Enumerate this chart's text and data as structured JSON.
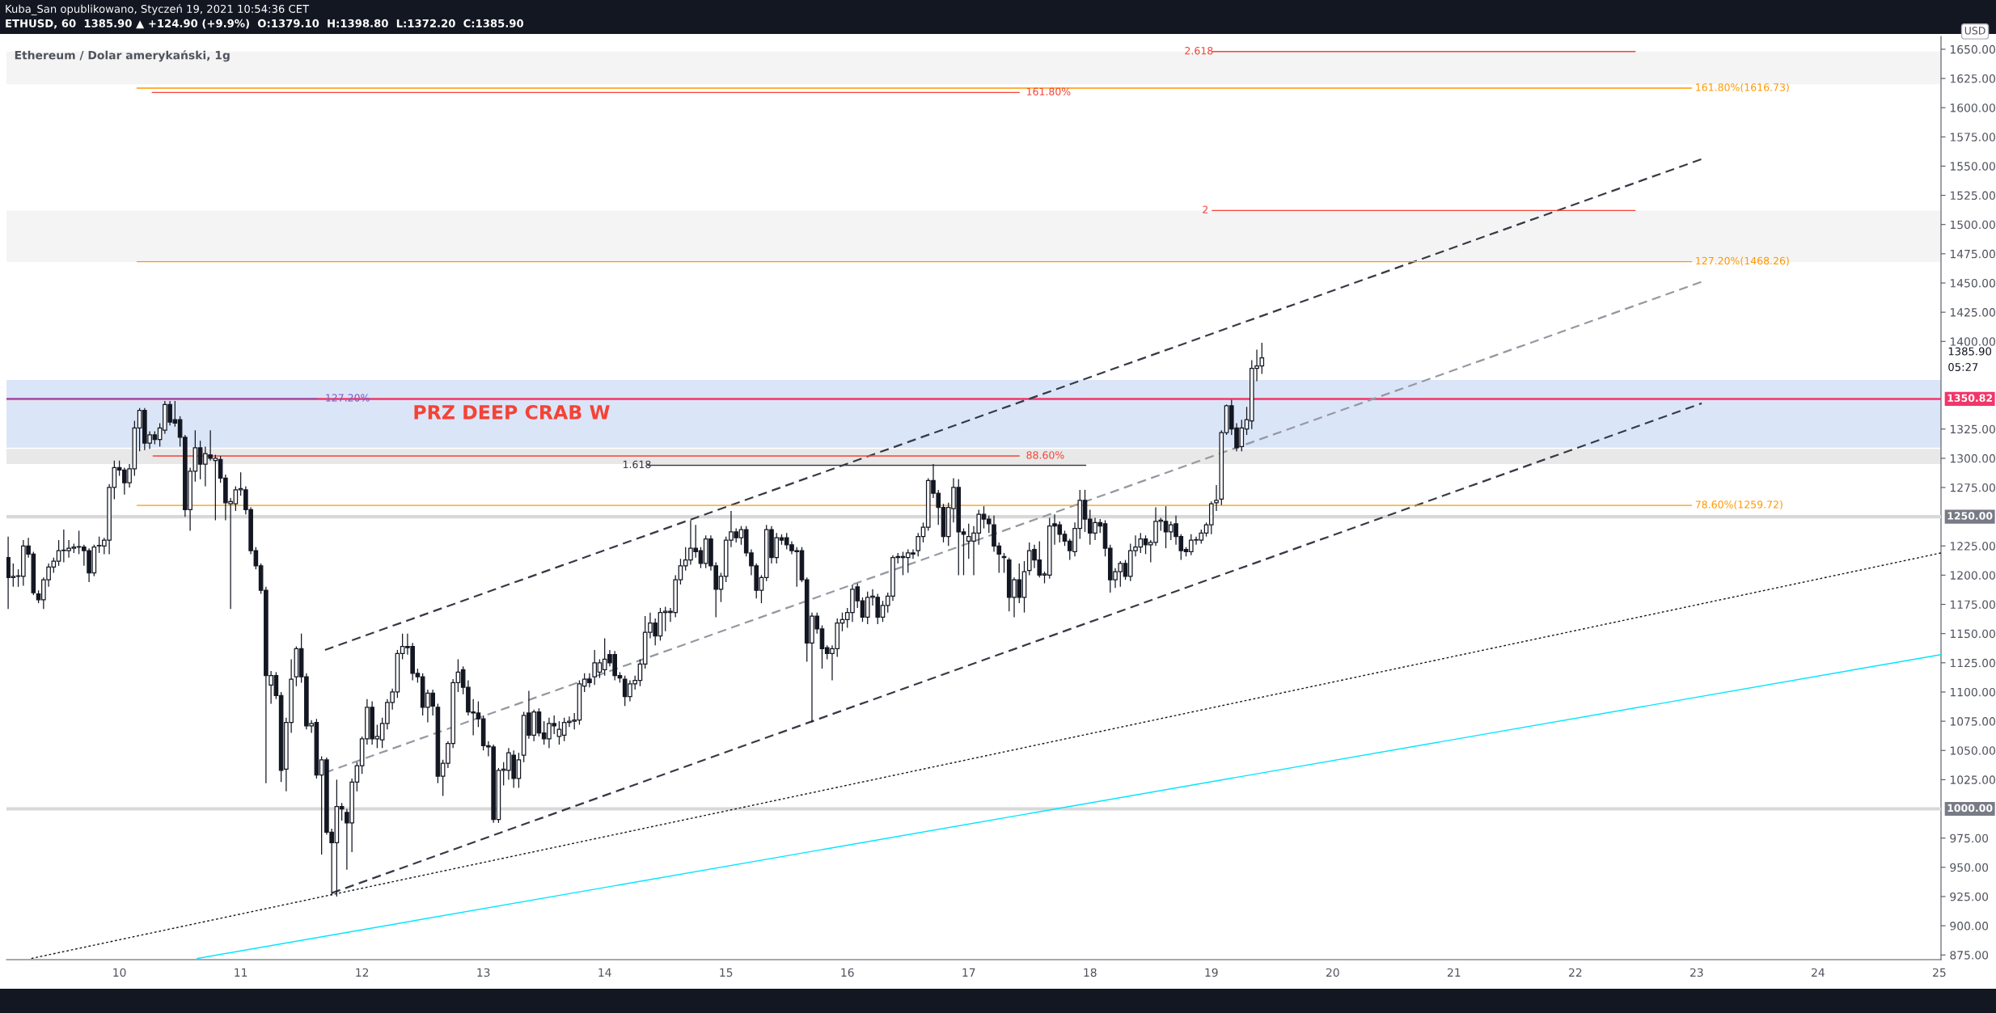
{
  "chart_data": {
    "type": "candlestick",
    "title": "Kuba_San opublikowano, Styczeń 19, 2021 10:54:36 CET",
    "subtitle": "ETHUSD, 60  1385.90 ▲ +124.90 (+9.9%)  O:1379.10  H:1398.80  L:1372.20  C:1385.90",
    "ylabel": "USD",
    "color": "#131722",
    "x": [
      "2021-01-09T02:00",
      "2021-01-09T03:00",
      "2021-01-09T04:00",
      "2021-01-09T05:00",
      "2021-01-09T06:00",
      "2021-01-09T07:00",
      "2021-01-09T08:00",
      "2021-01-09T09:00",
      "2021-01-09T10:00",
      "2021-01-09T11:00",
      "2021-01-09T12:00",
      "2021-01-09T13:00",
      "2021-01-09T14:00",
      "2021-01-09T15:00",
      "2021-01-09T16:00",
      "2021-01-09T17:00",
      "2021-01-09T18:00",
      "2021-01-09T19:00",
      "2021-01-09T20:00",
      "2021-01-09T21:00",
      "2021-01-09T22:00",
      "2021-01-09T23:00",
      "2021-01-10T00:00",
      "2021-01-10T01:00",
      "2021-01-10T02:00",
      "2021-01-10T03:00",
      "2021-01-10T04:00",
      "2021-01-10T05:00",
      "2021-01-10T06:00",
      "2021-01-10T07:00",
      "2021-01-10T08:00",
      "2021-01-10T09:00",
      "2021-01-10T10:00",
      "2021-01-10T11:00",
      "2021-01-10T12:00",
      "2021-01-10T13:00",
      "2021-01-10T14:00",
      "2021-01-10T15:00",
      "2021-01-10T16:00",
      "2021-01-10T17:00",
      "2021-01-10T18:00",
      "2021-01-10T19:00",
      "2021-01-10T20:00",
      "2021-01-10T21:00",
      "2021-01-10T22:00",
      "2021-01-10T23:00",
      "2021-01-11T00:00",
      "2021-01-11T01:00",
      "2021-01-11T02:00",
      "2021-01-11T03:00",
      "2021-01-11T04:00",
      "2021-01-11T05:00",
      "2021-01-11T06:00",
      "2021-01-11T07:00",
      "2021-01-11T08:00",
      "2021-01-11T09:00",
      "2021-01-11T10:00",
      "2021-01-11T11:00",
      "2021-01-11T12:00",
      "2021-01-11T13:00",
      "2021-01-11T14:00",
      "2021-01-11T15:00",
      "2021-01-11T16:00",
      "2021-01-11T17:00",
      "2021-01-11T18:00",
      "2021-01-11T19:00",
      "2021-01-11T20:00",
      "2021-01-11T21:00",
      "2021-01-11T22:00",
      "2021-01-11T23:00",
      "2021-01-12T00:00",
      "2021-01-12T01:00",
      "2021-01-12T02:00",
      "2021-01-12T03:00",
      "2021-01-12T04:00",
      "2021-01-12T05:00",
      "2021-01-12T06:00",
      "2021-01-12T07:00",
      "2021-01-12T08:00",
      "2021-01-12T09:00",
      "2021-01-12T10:00",
      "2021-01-12T11:00",
      "2021-01-12T12:00",
      "2021-01-12T13:00",
      "2021-01-12T14:00",
      "2021-01-12T15:00",
      "2021-01-12T16:00",
      "2021-01-12T17:00",
      "2021-01-12T18:00",
      "2021-01-12T19:00",
      "2021-01-12T20:00",
      "2021-01-12T21:00",
      "2021-01-12T22:00",
      "2021-01-12T23:00",
      "2021-01-13T00:00",
      "2021-01-13T01:00",
      "2021-01-13T02:00",
      "2021-01-13T03:00",
      "2021-01-13T04:00",
      "2021-01-13T05:00",
      "2021-01-13T06:00",
      "2021-01-13T07:00",
      "2021-01-13T08:00",
      "2021-01-13T09:00",
      "2021-01-13T10:00",
      "2021-01-13T11:00",
      "2021-01-13T12:00",
      "2021-01-13T13:00",
      "2021-01-13T14:00",
      "2021-01-13T15:00",
      "2021-01-13T16:00",
      "2021-01-13T17:00",
      "2021-01-13T18:00",
      "2021-01-13T19:00",
      "2021-01-13T20:00",
      "2021-01-13T21:00",
      "2021-01-13T22:00",
      "2021-01-13T23:00",
      "2021-01-14T00:00",
      "2021-01-14T01:00",
      "2021-01-14T02:00",
      "2021-01-14T03:00",
      "2021-01-14T04:00",
      "2021-01-14T05:00",
      "2021-01-14T06:00",
      "2021-01-14T07:00",
      "2021-01-14T08:00",
      "2021-01-14T09:00",
      "2021-01-14T10:00",
      "2021-01-14T11:00",
      "2021-01-14T12:00",
      "2021-01-14T13:00",
      "2021-01-14T14:00",
      "2021-01-14T15:00",
      "2021-01-14T16:00",
      "2021-01-14T17:00",
      "2021-01-14T18:00",
      "2021-01-14T19:00",
      "2021-01-14T20:00",
      "2021-01-14T21:00",
      "2021-01-14T22:00",
      "2021-01-14T23:00",
      "2021-01-15T00:00",
      "2021-01-15T01:00",
      "2021-01-15T02:00",
      "2021-01-15T03:00",
      "2021-01-15T04:00",
      "2021-01-15T05:00",
      "2021-01-15T06:00",
      "2021-01-15T07:00",
      "2021-01-15T08:00",
      "2021-01-15T09:00",
      "2021-01-15T10:00",
      "2021-01-15T11:00",
      "2021-01-15T12:00",
      "2021-01-15T13:00",
      "2021-01-15T14:00",
      "2021-01-15T15:00",
      "2021-01-15T16:00",
      "2021-01-15T17:00",
      "2021-01-15T18:00",
      "2021-01-15T19:00",
      "2021-01-15T20:00",
      "2021-01-15T21:00",
      "2021-01-15T22:00",
      "2021-01-15T23:00",
      "2021-01-16T00:00",
      "2021-01-16T01:00",
      "2021-01-16T02:00",
      "2021-01-16T03:00",
      "2021-01-16T04:00",
      "2021-01-16T05:00",
      "2021-01-16T06:00",
      "2021-01-16T07:00",
      "2021-01-16T08:00",
      "2021-01-16T09:00",
      "2021-01-16T10:00",
      "2021-01-16T11:00",
      "2021-01-16T12:00",
      "2021-01-16T13:00",
      "2021-01-16T14:00",
      "2021-01-16T15:00",
      "2021-01-16T16:00",
      "2021-01-16T17:00",
      "2021-01-16T18:00",
      "2021-01-16T19:00",
      "2021-01-16T20:00",
      "2021-01-16T21:00",
      "2021-01-16T22:00",
      "2021-01-16T23:00",
      "2021-01-17T00:00",
      "2021-01-17T01:00",
      "2021-01-17T02:00",
      "2021-01-17T03:00",
      "2021-01-17T04:00",
      "2021-01-17T05:00",
      "2021-01-17T06:00",
      "2021-01-17T07:00",
      "2021-01-17T08:00",
      "2021-01-17T09:00",
      "2021-01-17T10:00",
      "2021-01-17T11:00",
      "2021-01-17T12:00",
      "2021-01-17T13:00",
      "2021-01-17T14:00",
      "2021-01-17T15:00",
      "2021-01-17T16:00",
      "2021-01-17T17:00",
      "2021-01-17T18:00",
      "2021-01-17T19:00",
      "2021-01-17T20:00",
      "2021-01-17T21:00",
      "2021-01-17T22:00",
      "2021-01-17T23:00",
      "2021-01-18T00:00",
      "2021-01-18T01:00",
      "2021-01-18T02:00",
      "2021-01-18T03:00",
      "2021-01-18T04:00",
      "2021-01-18T05:00",
      "2021-01-18T06:00",
      "2021-01-18T07:00",
      "2021-01-18T08:00",
      "2021-01-18T09:00",
      "2021-01-18T10:00",
      "2021-01-18T11:00",
      "2021-01-18T12:00",
      "2021-01-18T13:00",
      "2021-01-18T14:00",
      "2021-01-18T15:00",
      "2021-01-18T16:00",
      "2021-01-18T17:00",
      "2021-01-18T18:00",
      "2021-01-18T19:00",
      "2021-01-18T20:00",
      "2021-01-18T21:00",
      "2021-01-18T22:00",
      "2021-01-18T23:00",
      "2021-01-19T00:00",
      "2021-01-19T01:00",
      "2021-01-19T02:00",
      "2021-01-19T03:00",
      "2021-01-19T04:00",
      "2021-01-19T05:00",
      "2021-01-19T06:00",
      "2021-01-19T07:00",
      "2021-01-19T08:00",
      "2021-01-19T09:00",
      "2021-01-19T10:00"
    ],
    "ohlc": [
      [
        1215,
        1233,
        1171,
        1198
      ],
      [
        1198,
        1210,
        1190,
        1199
      ],
      [
        1199,
        1205,
        1190,
        1199
      ],
      [
        1199,
        1230,
        1191,
        1225
      ],
      [
        1225,
        1232,
        1215,
        1218
      ],
      [
        1218,
        1220,
        1183,
        1185
      ],
      [
        1184,
        1187,
        1176,
        1179
      ],
      [
        1179,
        1198,
        1171,
        1196
      ],
      [
        1196,
        1210,
        1190,
        1207
      ],
      [
        1207,
        1215,
        1202,
        1212
      ],
      [
        1212,
        1230,
        1208,
        1221
      ],
      [
        1221,
        1239,
        1211,
        1221
      ],
      [
        1221,
        1230,
        1215,
        1223
      ],
      [
        1223,
        1227,
        1219,
        1224
      ],
      [
        1224,
        1238,
        1218,
        1224
      ],
      [
        1224,
        1226,
        1208,
        1221
      ],
      [
        1221,
        1223,
        1194,
        1202
      ],
      [
        1202,
        1226,
        1199,
        1224
      ],
      [
        1225,
        1233,
        1219,
        1225
      ],
      [
        1225,
        1232,
        1218,
        1230
      ],
      [
        1230,
        1278,
        1218,
        1275
      ],
      [
        1275,
        1298,
        1265,
        1292
      ],
      [
        1292,
        1298,
        1285,
        1290
      ],
      [
        1290,
        1292,
        1269,
        1279
      ],
      [
        1279,
        1295,
        1275,
        1291
      ],
      [
        1291,
        1332,
        1285,
        1326
      ],
      [
        1326,
        1343,
        1306,
        1341
      ],
      [
        1341,
        1343,
        1307,
        1313
      ],
      [
        1313,
        1323,
        1308,
        1320
      ],
      [
        1320,
        1323,
        1312,
        1316
      ],
      [
        1316,
        1330,
        1310,
        1326
      ],
      [
        1324,
        1349,
        1321,
        1346
      ],
      [
        1346,
        1349,
        1328,
        1331
      ],
      [
        1333,
        1349,
        1327,
        1330
      ],
      [
        1333,
        1336,
        1310,
        1318
      ],
      [
        1318,
        1320,
        1250,
        1256
      ],
      [
        1256,
        1292,
        1238,
        1289
      ],
      [
        1289,
        1324,
        1280,
        1309
      ],
      [
        1309,
        1315,
        1282,
        1295
      ],
      [
        1295,
        1310,
        1276,
        1304
      ],
      [
        1303,
        1324,
        1298,
        1300
      ],
      [
        1298,
        1303,
        1247,
        1300
      ],
      [
        1299,
        1302,
        1279,
        1283
      ],
      [
        1283,
        1286,
        1247,
        1262
      ],
      [
        1261,
        1266,
        1171,
        1263
      ],
      [
        1261,
        1276,
        1255,
        1273
      ],
      [
        1273,
        1288,
        1268,
        1274
      ],
      [
        1273,
        1276,
        1252,
        1256
      ],
      [
        1256,
        1258,
        1218,
        1221
      ],
      [
        1221,
        1224,
        1205,
        1208
      ],
      [
        1208,
        1210,
        1184,
        1187
      ],
      [
        1187,
        1190,
        1022,
        1114
      ],
      [
        1106,
        1118,
        1090,
        1114
      ],
      [
        1114,
        1117,
        1094,
        1097
      ],
      [
        1097,
        1100,
        1023,
        1033
      ],
      [
        1034,
        1078,
        1015,
        1074
      ],
      [
        1074,
        1128,
        1065,
        1111
      ],
      [
        1113,
        1139,
        1105,
        1137
      ],
      [
        1137,
        1150,
        1108,
        1113
      ],
      [
        1113,
        1116,
        1068,
        1071
      ],
      [
        1071,
        1076,
        1065,
        1073
      ],
      [
        1074,
        1077,
        1026,
        1029
      ],
      [
        1029,
        1045,
        961,
        1042
      ],
      [
        1042,
        1044,
        978,
        980
      ],
      [
        980,
        983,
        926,
        971
      ],
      [
        971,
        1025,
        925,
        1002
      ],
      [
        1002,
        1005,
        990,
        1000
      ],
      [
        997,
        1000,
        948,
        988
      ],
      [
        988,
        1026,
        963,
        1023
      ],
      [
        1023,
        1040,
        1015,
        1037
      ],
      [
        1037,
        1062,
        1030,
        1060
      ],
      [
        1060,
        1094,
        1055,
        1087
      ],
      [
        1087,
        1092,
        1055,
        1060
      ],
      [
        1060,
        1072,
        1052,
        1062
      ],
      [
        1059,
        1078,
        1052,
        1073
      ],
      [
        1073,
        1094,
        1068,
        1091
      ],
      [
        1091,
        1103,
        1085,
        1100
      ],
      [
        1100,
        1136,
        1095,
        1133
      ],
      [
        1133,
        1150,
        1128,
        1139
      ],
      [
        1139,
        1150,
        1132,
        1138
      ],
      [
        1139,
        1142,
        1110,
        1116
      ],
      [
        1116,
        1120,
        1108,
        1113
      ],
      [
        1113,
        1116,
        1080,
        1087
      ],
      [
        1087,
        1102,
        1074,
        1099
      ],
      [
        1099,
        1102,
        1080,
        1088
      ],
      [
        1087,
        1090,
        1022,
        1028
      ],
      [
        1028,
        1042,
        1011,
        1039
      ],
      [
        1039,
        1058,
        1035,
        1056
      ],
      [
        1056,
        1111,
        1052,
        1108
      ],
      [
        1108,
        1128,
        1100,
        1117
      ],
      [
        1119,
        1122,
        1098,
        1104
      ],
      [
        1104,
        1110,
        1080,
        1083
      ],
      [
        1083,
        1094,
        1063,
        1082
      ],
      [
        1082,
        1092,
        1070,
        1077
      ],
      [
        1077,
        1080,
        1050,
        1054
      ],
      [
        1054,
        1058,
        1045,
        1053
      ],
      [
        1053,
        1055,
        988,
        991
      ],
      [
        991,
        1035,
        988,
        1033
      ],
      [
        1033,
        1040,
        1020,
        1034
      ],
      [
        1033,
        1052,
        1025,
        1048
      ],
      [
        1046,
        1050,
        1018,
        1026
      ],
      [
        1026,
        1048,
        1018,
        1042
      ],
      [
        1046,
        1083,
        1040,
        1080
      ],
      [
        1082,
        1101,
        1060,
        1063
      ],
      [
        1063,
        1085,
        1058,
        1083
      ],
      [
        1083,
        1086,
        1062,
        1065
      ],
      [
        1065,
        1075,
        1055,
        1060
      ],
      [
        1060,
        1078,
        1052,
        1073
      ],
      [
        1073,
        1080,
        1064,
        1071
      ],
      [
        1062,
        1075,
        1055,
        1068
      ],
      [
        1063,
        1078,
        1058,
        1074
      ],
      [
        1074,
        1079,
        1070,
        1075
      ],
      [
        1075,
        1082,
        1068,
        1076
      ],
      [
        1076,
        1110,
        1072,
        1107
      ],
      [
        1105,
        1116,
        1100,
        1111
      ],
      [
        1111,
        1116,
        1104,
        1108
      ],
      [
        1113,
        1136,
        1106,
        1125
      ],
      [
        1117,
        1128,
        1112,
        1125
      ],
      [
        1119,
        1146,
        1114,
        1128
      ],
      [
        1132,
        1136,
        1122,
        1125
      ],
      [
        1132,
        1135,
        1110,
        1114
      ],
      [
        1114,
        1117,
        1108,
        1112
      ],
      [
        1111,
        1114,
        1088,
        1096
      ],
      [
        1096,
        1110,
        1092,
        1107
      ],
      [
        1107,
        1114,
        1102,
        1110
      ],
      [
        1110,
        1128,
        1105,
        1124
      ],
      [
        1124,
        1165,
        1120,
        1151
      ],
      [
        1151,
        1168,
        1146,
        1159
      ],
      [
        1159,
        1163,
        1140,
        1148
      ],
      [
        1148,
        1172,
        1144,
        1168
      ],
      [
        1168,
        1173,
        1152,
        1169
      ],
      [
        1169,
        1172,
        1160,
        1168
      ],
      [
        1168,
        1200,
        1164,
        1196
      ],
      [
        1196,
        1214,
        1192,
        1208
      ],
      [
        1208,
        1224,
        1204,
        1213
      ],
      [
        1213,
        1247,
        1209,
        1223
      ],
      [
        1223,
        1243,
        1215,
        1220
      ],
      [
        1221,
        1224,
        1206,
        1210
      ],
      [
        1210,
        1234,
        1206,
        1231
      ],
      [
        1231,
        1234,
        1204,
        1208
      ],
      [
        1208,
        1211,
        1164,
        1188
      ],
      [
        1188,
        1202,
        1177,
        1199
      ],
      [
        1199,
        1233,
        1194,
        1230
      ],
      [
        1230,
        1255,
        1224,
        1237
      ],
      [
        1237,
        1240,
        1228,
        1232
      ],
      [
        1232,
        1242,
        1226,
        1239
      ],
      [
        1239,
        1242,
        1216,
        1219
      ],
      [
        1219,
        1222,
        1200,
        1208
      ],
      [
        1208,
        1210,
        1180,
        1187
      ],
      [
        1187,
        1200,
        1176,
        1198
      ],
      [
        1198,
        1243,
        1195,
        1239
      ],
      [
        1239,
        1242,
        1210,
        1215
      ],
      [
        1215,
        1236,
        1210,
        1232
      ],
      [
        1232,
        1235,
        1226,
        1230
      ],
      [
        1232,
        1236,
        1222,
        1226
      ],
      [
        1226,
        1229,
        1218,
        1221
      ],
      [
        1221,
        1224,
        1190,
        1220
      ],
      [
        1221,
        1224,
        1194,
        1196
      ],
      [
        1196,
        1198,
        1126,
        1142
      ],
      [
        1142,
        1168,
        1074,
        1165
      ],
      [
        1165,
        1168,
        1150,
        1154
      ],
      [
        1154,
        1157,
        1120,
        1137
      ],
      [
        1138,
        1140,
        1128,
        1133
      ],
      [
        1133,
        1140,
        1110,
        1137
      ],
      [
        1137,
        1163,
        1130,
        1159
      ],
      [
        1159,
        1168,
        1152,
        1162
      ],
      [
        1162,
        1172,
        1155,
        1168
      ],
      [
        1168,
        1192,
        1160,
        1188
      ],
      [
        1190,
        1193,
        1172,
        1178
      ],
      [
        1178,
        1181,
        1160,
        1164
      ],
      [
        1164,
        1186,
        1158,
        1181
      ],
      [
        1181,
        1188,
        1174,
        1182
      ],
      [
        1181,
        1184,
        1158,
        1164
      ],
      [
        1164,
        1178,
        1160,
        1174
      ],
      [
        1174,
        1185,
        1168,
        1182
      ],
      [
        1182,
        1217,
        1178,
        1215
      ],
      [
        1215,
        1219,
        1210,
        1216
      ],
      [
        1215,
        1220,
        1200,
        1216
      ],
      [
        1215,
        1222,
        1202,
        1219
      ],
      [
        1219,
        1222,
        1214,
        1218
      ],
      [
        1221,
        1236,
        1216,
        1233
      ],
      [
        1233,
        1245,
        1228,
        1241
      ],
      [
        1241,
        1283,
        1238,
        1281
      ],
      [
        1281,
        1295,
        1266,
        1270
      ],
      [
        1270,
        1273,
        1243,
        1258
      ],
      [
        1258,
        1261,
        1228,
        1233
      ],
      [
        1233,
        1262,
        1225,
        1258
      ],
      [
        1257,
        1283,
        1245,
        1275
      ],
      [
        1275,
        1282,
        1200,
        1237
      ],
      [
        1237,
        1240,
        1200,
        1235
      ],
      [
        1229,
        1244,
        1214,
        1233
      ],
      [
        1229,
        1242,
        1200,
        1236
      ],
      [
        1236,
        1256,
        1226,
        1252
      ],
      [
        1252,
        1259,
        1240,
        1248
      ],
      [
        1248,
        1251,
        1236,
        1244
      ],
      [
        1243,
        1251,
        1220,
        1225
      ],
      [
        1225,
        1228,
        1202,
        1218
      ],
      [
        1216,
        1219,
        1202,
        1215
      ],
      [
        1213,
        1215,
        1169,
        1181
      ],
      [
        1181,
        1198,
        1164,
        1196
      ],
      [
        1196,
        1210,
        1176,
        1181
      ],
      [
        1181,
        1212,
        1168,
        1203
      ],
      [
        1204,
        1228,
        1200,
        1221
      ],
      [
        1222,
        1226,
        1206,
        1213
      ],
      [
        1213,
        1229,
        1198,
        1200
      ],
      [
        1200,
        1203,
        1193,
        1201
      ],
      [
        1200,
        1249,
        1197,
        1242
      ],
      [
        1244,
        1252,
        1226,
        1242
      ],
      [
        1243,
        1246,
        1228,
        1235
      ],
      [
        1235,
        1238,
        1225,
        1229
      ],
      [
        1229,
        1231,
        1213,
        1221
      ],
      [
        1220,
        1245,
        1216,
        1240
      ],
      [
        1240,
        1273,
        1231,
        1264
      ],
      [
        1264,
        1273,
        1237,
        1248
      ],
      [
        1248,
        1256,
        1226,
        1236
      ],
      [
        1236,
        1249,
        1230,
        1245
      ],
      [
        1245,
        1248,
        1236,
        1242
      ],
      [
        1244,
        1247,
        1216,
        1223
      ],
      [
        1223,
        1226,
        1185,
        1196
      ],
      [
        1196,
        1206,
        1189,
        1203
      ],
      [
        1203,
        1212,
        1190,
        1210
      ],
      [
        1210,
        1213,
        1196,
        1199
      ],
      [
        1199,
        1227,
        1195,
        1221
      ],
      [
        1221,
        1234,
        1216,
        1224
      ],
      [
        1224,
        1236,
        1219,
        1231
      ],
      [
        1231,
        1234,
        1218,
        1226
      ],
      [
        1226,
        1230,
        1211,
        1228
      ],
      [
        1228,
        1258,
        1225,
        1246
      ],
      [
        1246,
        1249,
        1238,
        1247
      ],
      [
        1246,
        1259,
        1223,
        1237
      ],
      [
        1237,
        1246,
        1230,
        1243
      ],
      [
        1244,
        1251,
        1226,
        1233
      ],
      [
        1233,
        1235,
        1213,
        1221
      ],
      [
        1222,
        1224,
        1216,
        1220
      ],
      [
        1220,
        1235,
        1217,
        1230
      ],
      [
        1230,
        1233,
        1226,
        1230
      ],
      [
        1230,
        1239,
        1227,
        1236
      ],
      [
        1236,
        1245,
        1233,
        1243
      ],
      [
        1243,
        1263,
        1235,
        1261
      ],
      [
        1262,
        1277,
        1255,
        1264
      ],
      [
        1265,
        1324,
        1260,
        1322
      ],
      [
        1322,
        1346,
        1320,
        1345
      ],
      [
        1345,
        1350,
        1320,
        1325
      ],
      [
        1326,
        1330,
        1306,
        1309
      ],
      [
        1310,
        1333,
        1306,
        1326
      ],
      [
        1325,
        1344,
        1320,
        1333
      ],
      [
        1332,
        1384,
        1325,
        1377
      ],
      [
        1377,
        1393,
        1366,
        1379
      ],
      [
        1379.1,
        1398.8,
        1372.2,
        1385.9
      ]
    ],
    "series": [
      {
        "type": "line",
        "x": [
          "2021-01-11T16:40",
          "2021-01-23T01:00"
        ],
        "values": [
          1136,
          1556
        ],
        "color": "#363a45",
        "line_style": "dashed"
      },
      {
        "type": "line",
        "x": [
          "2021-01-11T16:40",
          "2021-01-23T01:00"
        ],
        "values": [
          1031,
          1451
        ],
        "color": "#9598a1",
        "line_style": "dashed"
      },
      {
        "type": "line",
        "x": [
          "2021-01-11T18:00",
          "2021-01-23T01:00"
        ],
        "values": [
          928,
          1347
        ],
        "color": "#363a45",
        "line_style": "dashed"
      },
      {
        "type": "line",
        "x": [
          "2021-01-09T06:35",
          "2021-01-25T00:20"
        ],
        "values": [
          872,
          1219
        ],
        "color": "#131722",
        "line_style": "dotted"
      },
      {
        "type": "line",
        "x": [
          "2021-01-10T15:25",
          "2021-01-25T00:20"
        ],
        "values": [
          872,
          1132
        ],
        "color": "#00e5ff",
        "line_style": "solid"
      },
      {
        "type": "line",
        "x": [
          "2021-01-10T03:30",
          "2021-01-22T23:00"
        ],
        "values": [
          1616.73,
          1616.73
        ],
        "color": "#ff9800",
        "line_style": "solid"
      },
      {
        "type": "line",
        "x": [
          "2021-01-10T03:30",
          "2021-01-22T23:00"
        ],
        "values": [
          1468.26,
          1468.26
        ],
        "color": "#ff9800",
        "line_style": "solid"
      },
      {
        "type": "line",
        "x": [
          "2021-01-10T03:30",
          "2021-01-22T23:00"
        ],
        "values": [
          1259.72,
          1259.72
        ],
        "color": "#ff9800",
        "line_style": "solid"
      },
      {
        "type": "line",
        "x": [
          "2021-01-10T06:30",
          "2021-01-17T10:00"
        ],
        "values": [
          1613,
          1613
        ],
        "color": "#f44336",
        "line_style": "solid"
      },
      {
        "type": "line",
        "x": [
          "2021-01-10T06:40",
          "2021-01-17T10:00"
        ],
        "values": [
          1302,
          1302
        ],
        "color": "#f44336",
        "line_style": "solid"
      },
      {
        "type": "line",
        "x": [
          "2021-01-09T01:40",
          "2021-01-11T15:10"
        ],
        "values": [
          1351,
          1351
        ],
        "color": "#7e57c2",
        "line_style": "solid"
      },
      {
        "type": "line",
        "x": [
          "2021-01-14T08:30",
          "2021-01-17T23:10"
        ],
        "values": [
          1294,
          1294
        ],
        "color": "#363a45",
        "line_style": "solid"
      },
      {
        "type": "line",
        "x": [
          "2021-01-19T00:10",
          "2021-01-22T11:50"
        ],
        "values": [
          1512,
          1512
        ],
        "color": "#f44336",
        "line_style": "solid"
      },
      {
        "type": "line",
        "x": [
          "2021-01-19T00:10",
          "2021-01-22T11:50"
        ],
        "values": [
          1648,
          1648
        ],
        "color": "#f44336",
        "line_style": "solid"
      }
    ],
    "ref_lines": [
      {
        "axis": "y",
        "value": 1350.82,
        "label": "1350.82",
        "color": "#f23669"
      },
      {
        "axis": "y",
        "value": 1250,
        "label": "1250.00",
        "color": "#d8d8d8"
      },
      {
        "axis": "y",
        "value": 1000,
        "label": "1000.00",
        "color": "#d8d8d8"
      }
    ],
    "bands": [
      {
        "axis": "y",
        "from": 1309,
        "to": 1367,
        "color": "#dbe5f8"
      },
      {
        "axis": "y",
        "from": 1295,
        "to": 1308,
        "color": "#e8e8e8"
      },
      {
        "axis": "y",
        "from": 1468,
        "to": 1512,
        "color": "#f4f4f4"
      },
      {
        "axis": "y",
        "from": 1620,
        "to": 1648,
        "color": "#f4f4f4"
      }
    ],
    "annotations": [
      "Ethereum / Dolar amerykański, 1g",
      {
        "text": "161.80%(1616.73)",
        "x": "2021-01-22T23:00",
        "y": 1616.73
      },
      {
        "text": "127.20%(1468.26)",
        "x": "2021-01-22T23:00",
        "y": 1468.26
      },
      {
        "text": "78.60%(1259.72)",
        "x": "2021-01-22T23:00",
        "y": 1259.72
      },
      {
        "text": "161.80%",
        "x": "2021-01-17T10:40",
        "y": 1613
      },
      {
        "text": "88.60%",
        "x": "2021-01-17T10:40",
        "y": 1302
      },
      {
        "text": "127.20%",
        "x": "2021-01-11T16:00",
        "y": 1351
      },
      {
        "text": "1.618",
        "x": "2021-01-14T02:50",
        "y": 1294
      },
      {
        "text": "2",
        "x": "2021-01-18T21:30",
        "y": 1512
      },
      {
        "text": "2.618",
        "x": "2021-01-18T18:00",
        "y": 1648
      },
      "PRZ DEEP CRAB W",
      "1385.90",
      "05:27"
    ],
    "xlim": [
      "2021-01-09T01:40",
      "2021-01-25T00:20"
    ],
    "xticks": [
      {
        "value": "2021-01-10",
        "label": "10"
      },
      {
        "value": "2021-01-11",
        "label": "11"
      },
      {
        "value": "2021-01-12",
        "label": "12"
      },
      {
        "value": "2021-01-13",
        "label": "13"
      },
      {
        "value": "2021-01-14",
        "label": "14"
      },
      {
        "value": "2021-01-15",
        "label": "15"
      },
      {
        "value": "2021-01-16",
        "label": "16"
      },
      {
        "value": "2021-01-17",
        "label": "17"
      },
      {
        "value": "2021-01-18",
        "label": "18"
      },
      {
        "value": "2021-01-19",
        "label": "19"
      },
      {
        "value": "2021-01-20",
        "label": "20"
      },
      {
        "value": "2021-01-21",
        "label": "21"
      },
      {
        "value": "2021-01-22",
        "label": "22"
      },
      {
        "value": "2021-01-23",
        "label": "23"
      },
      {
        "value": "2021-01-24",
        "label": "24"
      },
      {
        "value": "2021-01-25",
        "label": "25"
      }
    ],
    "ylim": [
      871,
      1661
    ],
    "yticks": [
      {
        "value": 875,
        "label": "875.00"
      },
      {
        "value": 900,
        "label": "900.00"
      },
      {
        "value": 925,
        "label": "925.00"
      },
      {
        "value": 950,
        "label": "950.00"
      },
      {
        "value": 975,
        "label": "975.00"
      },
      {
        "value": 1025,
        "label": "1025.00"
      },
      {
        "value": 1050,
        "label": "1050.00"
      },
      {
        "value": 1075,
        "label": "1075.00"
      },
      {
        "value": 1100,
        "label": "1100.00"
      },
      {
        "value": 1125,
        "label": "1125.00"
      },
      {
        "value": 1150,
        "label": "1150.00"
      },
      {
        "value": 1175,
        "label": "1175.00"
      },
      {
        "value": 1200,
        "label": "1200.00"
      },
      {
        "value": 1225,
        "label": "1225.00"
      },
      {
        "value": 1275,
        "label": "1275.00"
      },
      {
        "value": 1300,
        "label": "1300.00"
      },
      {
        "value": 1325,
        "label": "1325.00"
      },
      {
        "value": 1400,
        "label": "1400.00"
      },
      {
        "value": 1425,
        "label": "1425.00"
      },
      {
        "value": 1450,
        "label": "1450.00"
      },
      {
        "value": 1475,
        "label": "1475.00"
      },
      {
        "value": 1500,
        "label": "1500.00"
      },
      {
        "value": 1525,
        "label": "1525.00"
      },
      {
        "value": 1550,
        "label": "1550.00"
      },
      {
        "value": 1575,
        "label": "1575.00"
      },
      {
        "value": 1600,
        "label": "1600.00"
      },
      {
        "value": 1625,
        "label": "1625.00"
      },
      {
        "value": 1650,
        "label": "1650.00"
      }
    ]
  }
}
